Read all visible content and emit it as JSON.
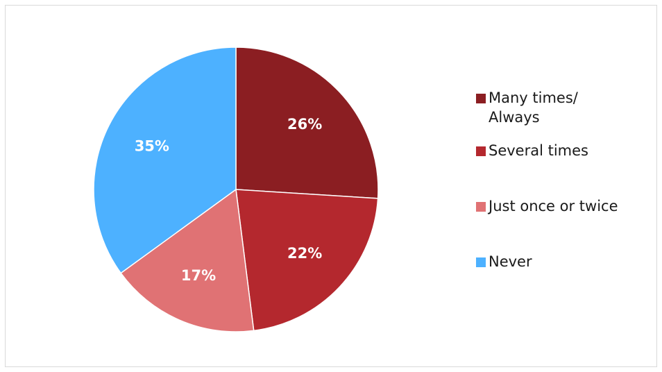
{
  "chart_data": {
    "type": "pie",
    "title": "",
    "start_angle_deg": 0,
    "direction": "clockwise",
    "legend_position": "right",
    "slices": [
      {
        "name": "Many times/ Always",
        "legend_lines": [
          "Many times/",
          "Always"
        ],
        "value": 26,
        "label": "26%",
        "color": "#8b1e22"
      },
      {
        "name": "Several times",
        "legend_lines": [
          "Several times"
        ],
        "value": 22,
        "label": "22%",
        "color": "#b4282e"
      },
      {
        "name": "Just once or twice",
        "legend_lines": [
          "Just once or twice"
        ],
        "value": 17,
        "label": "17%",
        "color": "#e07274"
      },
      {
        "name": "Never",
        "legend_lines": [
          "Never"
        ],
        "value": 35,
        "label": "35%",
        "color": "#4db1ff"
      }
    ]
  }
}
